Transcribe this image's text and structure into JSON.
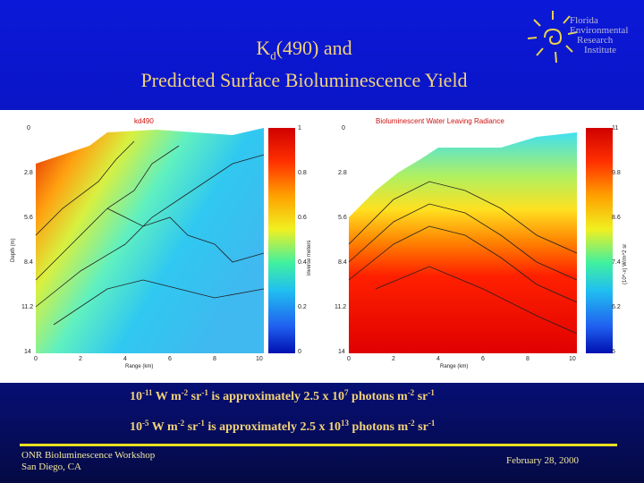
{
  "slide": {
    "title_line1_prefix": "K",
    "title_line1_sub": "d",
    "title_line1_suffix": "(490) and",
    "title_line2": "Predicted Surface Bioluminescence Yield"
  },
  "logo": {
    "icon": "sun-spiral-icon",
    "lines": [
      "Florida",
      "Environmental",
      "Research",
      "Institute"
    ]
  },
  "figure": {
    "left_title": "kd490",
    "right_title": "Bioluminescent Water Leaving Radiance",
    "y_ticks": [
      "0",
      "2.8",
      "5.6",
      "8.4",
      "11.2",
      "14"
    ],
    "x_ticks": [
      "0",
      "2",
      "4",
      "6",
      "8",
      "10"
    ],
    "x_label": "Range (km)",
    "y_label": "Depth (m)",
    "left_cbar_ticks": [
      "1",
      "0.8",
      "0.6",
      "0.4",
      "0.2",
      "0"
    ],
    "left_cbar_label": "inverse meters",
    "right_cbar_ticks": [
      "11",
      "9.8",
      "8.6",
      "7.4",
      "6.2",
      "5"
    ],
    "right_cbar_label": "(10^-x) W/m^2 sr"
  },
  "equations": [
    {
      "a": "10",
      "a_exp": "-11",
      "b": " W m",
      "b_exp": "-2",
      "c": " sr",
      "c_exp": "-1",
      "d": " is approximately 2.5 x 10",
      "d_exp": "7",
      "e": "  photons m",
      "e_exp": "-2",
      "f": " sr",
      "f_exp": "-1"
    },
    {
      "a": "10",
      "a_exp": "-5",
      "b": "  W m",
      "b_exp": "-2",
      "c": " sr",
      "c_exp": "-1",
      "d": " is approximately 2.5 x 10",
      "d_exp": "13",
      "e": " photons m",
      "e_exp": "-2",
      "f": " sr",
      "f_exp": "-1"
    }
  ],
  "footer": {
    "left_line1": "ONR Bioluminescence Workshop",
    "left_line2": "San Diego, CA",
    "date": "February 28, 2000"
  },
  "colors": {
    "title": "#f2d27a",
    "rule": "#e8e020"
  }
}
